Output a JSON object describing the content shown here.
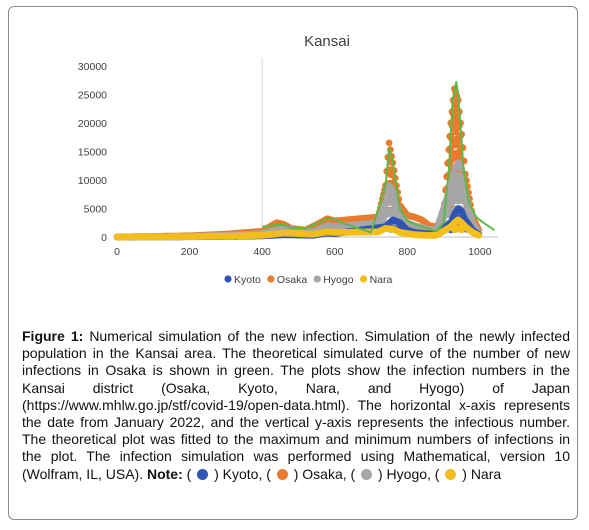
{
  "chart_data": {
    "type": "scatter",
    "title": "Kansai",
    "xlabel": "",
    "ylabel": "",
    "xlim": [
      0,
      1050
    ],
    "ylim": [
      0,
      30000
    ],
    "xticks": [
      "0",
      "200",
      "400",
      "600",
      "800",
      "1000"
    ],
    "yticks": [
      "0",
      "5000",
      "10000",
      "15000",
      "20000",
      "25000",
      "30000"
    ],
    "grid": false,
    "legend_position": "bottom",
    "series": [
      {
        "name": "Kyoto",
        "color": "#2f55b5",
        "x": [
          0,
          100,
          200,
          300,
          400,
          460,
          540,
          580,
          600,
          740,
          760,
          780,
          800,
          820,
          850,
          880,
          920,
          930,
          940,
          950,
          960,
          980,
          1000
        ],
        "y": [
          0,
          20,
          50,
          100,
          200,
          400,
          300,
          700,
          600,
          1800,
          3000,
          2500,
          1200,
          800,
          600,
          500,
          2500,
          4000,
          5000,
          4500,
          3000,
          1200,
          300
        ]
      },
      {
        "name": "Osaka",
        "color": "#e97b2c",
        "x": [
          0,
          100,
          200,
          300,
          400,
          440,
          460,
          480,
          520,
          560,
          580,
          600,
          720,
          740,
          750,
          760,
          770,
          780,
          800,
          820,
          840,
          860,
          880,
          900,
          920,
          930,
          940,
          950,
          960,
          980,
          1000
        ],
        "y": [
          0,
          100,
          200,
          500,
          1000,
          2500,
          2200,
          1500,
          1200,
          2500,
          3200,
          2800,
          3500,
          9000,
          16500,
          13000,
          9000,
          5500,
          3800,
          3500,
          3000,
          2000,
          1800,
          3500,
          20000,
          26000,
          24000,
          18000,
          11000,
          3500,
          800
        ]
      },
      {
        "name": "Hyogo",
        "color": "#a6a6a6",
        "x": [
          0,
          100,
          200,
          300,
          400,
          460,
          540,
          580,
          600,
          720,
          740,
          750,
          760,
          780,
          800,
          820,
          850,
          880,
          920,
          930,
          940,
          950,
          960,
          980,
          1000
        ],
        "y": [
          0,
          60,
          120,
          300,
          600,
          1500,
          900,
          2000,
          1800,
          2500,
          6000,
          9000,
          8000,
          4000,
          2500,
          2000,
          1500,
          1200,
          9000,
          12000,
          13000,
          12000,
          8000,
          2500,
          500
        ]
      },
      {
        "name": "Nara",
        "color": "#f3bd1b",
        "x": [
          0,
          100,
          200,
          300,
          400,
          460,
          540,
          580,
          600,
          720,
          740,
          760,
          780,
          800,
          820,
          850,
          880,
          920,
          930,
          940,
          950,
          960,
          980,
          1000
        ],
        "y": [
          0,
          30,
          60,
          150,
          300,
          700,
          500,
          900,
          800,
          900,
          1500,
          1400,
          800,
          600,
          400,
          300,
          300,
          1800,
          2500,
          3000,
          2500,
          1800,
          800,
          200
        ]
      },
      {
        "name": "",
        "color": "#5cb848",
        "x": [
          400,
          440,
          460,
          480,
          520,
          560,
          580,
          600,
          620,
          700,
          740,
          750,
          760,
          770,
          780,
          800,
          840,
          880,
          900,
          915,
          925,
          935,
          940,
          945,
          955,
          970,
          990,
          1010,
          1040
        ],
        "y": [
          1800,
          2100,
          2100,
          1600,
          1500,
          2600,
          3300,
          3200,
          2500,
          800,
          9000,
          15500,
          13500,
          8500,
          4800,
          2800,
          1800,
          1000,
          2500,
          12000,
          24000,
          27200,
          25000,
          21000,
          12000,
          6000,
          3500,
          2500,
          1200
        ]
      }
    ]
  },
  "caption": {
    "figure_label": "Figure 1:",
    "text": " Numerical simulation of the new infection. Simulation of the newly infected population in the Kansai area. The theoretical simulated curve of the number of new infections in Osaka is shown in green. The plots show the infection numbers in the Kansai district (Osaka, Kyoto, Nara, and Hyogo) of Japan (https://www.mhlw.go.jp/stf/covid-19/open-data.html). The horizontal x-axis represents the date from January 2022, and the vertical y-axis represents the infectious number. The theoretical plot was fitted to the maximum and minimum numbers of infections in the plot. The infection simulation was performed using Mathematical, version 10 (Wolfram, IL, USA).",
    "note_label": "Note:",
    "key": [
      {
        "name": "Kyoto",
        "color": "#2f55b5"
      },
      {
        "name": "Osaka",
        "color": "#e97b2c"
      },
      {
        "name": "Hyogo",
        "color": "#a6a6a6"
      },
      {
        "name": "Nara",
        "color": "#f3bd1b"
      }
    ]
  }
}
